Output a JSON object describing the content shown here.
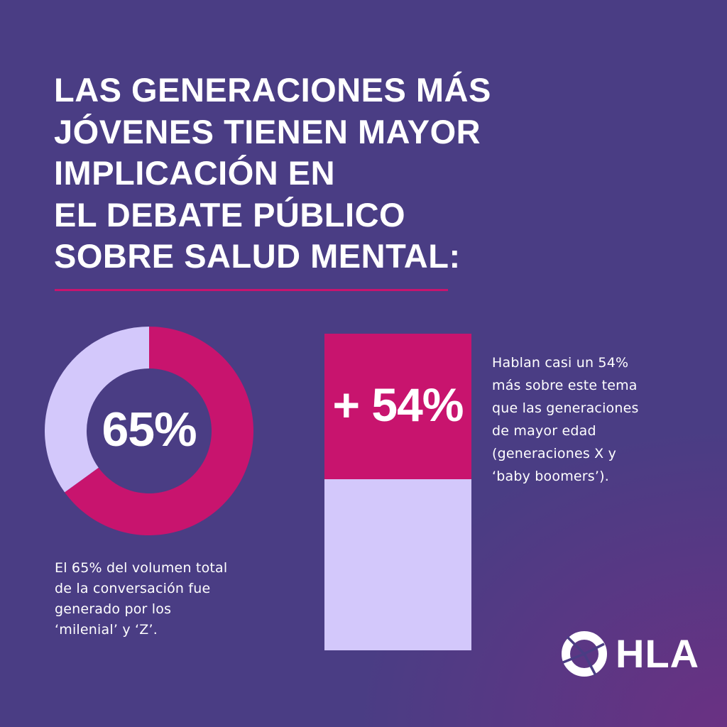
{
  "title_lines": [
    "LAS GENERACIONES MÁS",
    "JÓVENES TIENEN MAYOR",
    "IMPLICACIÓN EN",
    "EL DEBATE PÚBLICO",
    "SOBRE SALUD MENTAL:"
  ],
  "left": {
    "value_label": "65%",
    "caption_lines": [
      "El 65% del volumen total",
      "de la conversación fue",
      "generado por los",
      "‘milenial’ y ‘Z’."
    ]
  },
  "right": {
    "value_label": "+ 54%",
    "caption_lines": [
      "Hablan casi un 54%",
      "más sobre este tema",
      "que las generaciones",
      "de mayor edad",
      "(generaciones X y",
      "‘baby boomers’)."
    ]
  },
  "logo": {
    "text": "HLA"
  },
  "colors": {
    "background": "#4a3d84",
    "accent": "#c8146e",
    "light": "#d3c8fb",
    "text": "#ffffff"
  },
  "chart_data": [
    {
      "type": "pie",
      "categories": [
        "",
        ""
      ],
      "values": [
        65,
        35
      ],
      "colors": [
        "#c8146e",
        "#d3c8fb"
      ],
      "title": "",
      "data_label": "65%"
    },
    {
      "type": "bar",
      "categories": [
        ""
      ],
      "series": [
        {
          "values": [
            54
          ]
        }
      ],
      "colors": [
        "#c8146e",
        "#d3c8fb"
      ],
      "title": "",
      "data_label": "+ 54%"
    }
  ]
}
